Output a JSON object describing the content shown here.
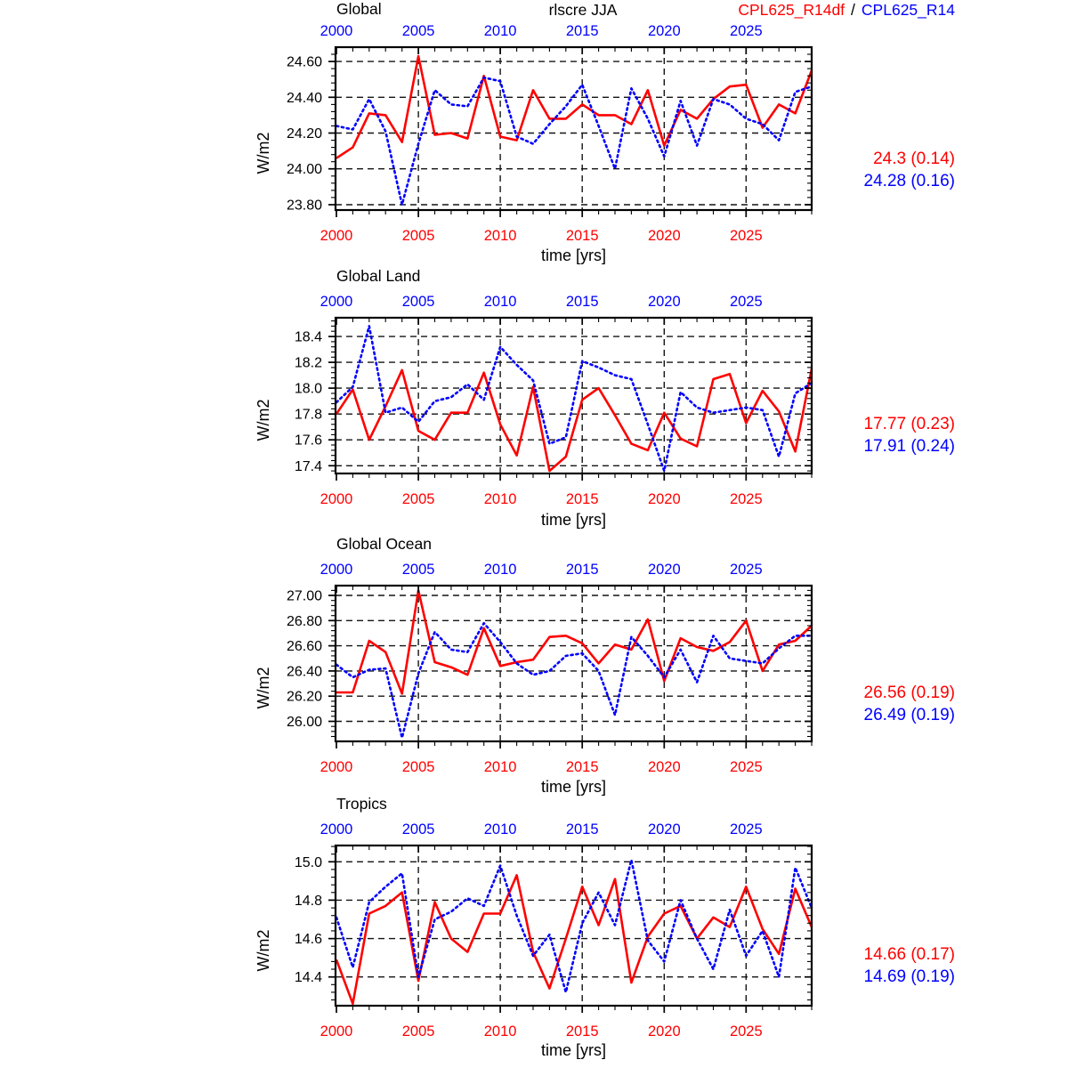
{
  "header": {
    "center_label": "rlscre JJA",
    "legend": {
      "series1_label": "CPL625_R14df",
      "separator": "/",
      "series2_label": "CPL625_R14"
    }
  },
  "colors": {
    "series1": "#ff0000",
    "series2": "#0000ff",
    "axis_top_labels": "#0000ff",
    "axis_bottom_labels": "#ff0000",
    "grid": "#141414",
    "text": "#000000"
  },
  "chart_data": [
    {
      "type": "line",
      "title": "Global",
      "ylabel": "W/m2",
      "xlabel": "time [yrs]",
      "x": [
        2000,
        2001,
        2002,
        2003,
        2004,
        2005,
        2006,
        2007,
        2008,
        2009,
        2010,
        2011,
        2012,
        2013,
        2014,
        2015,
        2016,
        2017,
        2018,
        2019,
        2020,
        2021,
        2022,
        2023,
        2024,
        2025,
        2026,
        2027,
        2028,
        2029
      ],
      "xticks": [
        2000,
        2005,
        2010,
        2015,
        2020,
        2025
      ],
      "ylim": [
        23.77,
        24.68
      ],
      "yticks": [
        24.6,
        24.4,
        24.2,
        24.0,
        23.8
      ],
      "ytick_labels": [
        "24.60",
        "24.40",
        "24.20",
        "24.00",
        "23.80"
      ],
      "grid": true,
      "series": [
        {
          "name": "CPL625_R14df",
          "color": "#ff0000",
          "line_style": "solid",
          "values": [
            24.06,
            24.12,
            24.31,
            24.3,
            24.15,
            24.63,
            24.19,
            24.2,
            24.17,
            24.52,
            24.18,
            24.16,
            24.44,
            24.28,
            24.28,
            24.36,
            24.3,
            24.3,
            24.25,
            24.44,
            24.13,
            24.33,
            24.28,
            24.39,
            24.46,
            24.47,
            24.23,
            24.36,
            24.31,
            24.55
          ]
        },
        {
          "name": "CPL625_R14",
          "color": "#0000ff",
          "line_style": "dotted",
          "values": [
            24.24,
            24.22,
            24.39,
            24.21,
            23.8,
            24.14,
            24.44,
            24.36,
            24.35,
            24.51,
            24.49,
            24.18,
            24.14,
            24.25,
            24.35,
            24.47,
            24.24,
            24.0,
            24.45,
            24.28,
            24.07,
            24.38,
            24.13,
            24.39,
            24.36,
            24.28,
            24.25,
            24.16,
            24.43,
            24.46
          ]
        }
      ],
      "stats": [
        {
          "text": "24.3 (0.14)",
          "color": "#ff0000"
        },
        {
          "text": "24.28 (0.16)",
          "color": "#0000ff"
        }
      ]
    },
    {
      "type": "line",
      "title": "Global Land",
      "ylabel": "W/m2",
      "xlabel": "time [yrs]",
      "x": [
        2000,
        2001,
        2002,
        2003,
        2004,
        2005,
        2006,
        2007,
        2008,
        2009,
        2010,
        2011,
        2012,
        2013,
        2014,
        2015,
        2016,
        2017,
        2018,
        2019,
        2020,
        2021,
        2022,
        2023,
        2024,
        2025,
        2026,
        2027,
        2028,
        2029
      ],
      "xticks": [
        2000,
        2005,
        2010,
        2015,
        2020,
        2025
      ],
      "ylim": [
        17.34,
        18.545
      ],
      "yticks": [
        18.4,
        18.2,
        18.0,
        17.8,
        17.6,
        17.4
      ],
      "ytick_labels": [
        "18.4",
        "18.2",
        "18.0",
        "17.8",
        "17.6",
        "17.4"
      ],
      "grid": true,
      "series": [
        {
          "name": "CPL625_R14df",
          "color": "#ff0000",
          "line_style": "solid",
          "values": [
            17.8,
            17.99,
            17.6,
            17.86,
            18.14,
            17.67,
            17.6,
            17.81,
            17.81,
            18.12,
            17.72,
            17.48,
            18.01,
            17.36,
            17.47,
            17.91,
            18.0,
            17.79,
            17.57,
            17.52,
            17.81,
            17.61,
            17.55,
            18.07,
            18.11,
            17.73,
            17.98,
            17.82,
            17.51,
            18.15
          ]
        },
        {
          "name": "CPL625_R14",
          "color": "#0000ff",
          "line_style": "dotted",
          "values": [
            17.89,
            18.01,
            18.48,
            17.81,
            17.85,
            17.74,
            17.9,
            17.93,
            18.03,
            17.91,
            18.32,
            18.18,
            18.06,
            17.57,
            17.62,
            18.21,
            18.16,
            18.1,
            18.07,
            17.72,
            17.36,
            17.97,
            17.85,
            17.81,
            17.83,
            17.85,
            17.83,
            17.47,
            17.96,
            18.04
          ]
        }
      ],
      "stats": [
        {
          "text": "17.77 (0.23)",
          "color": "#ff0000"
        },
        {
          "text": "17.91 (0.24)",
          "color": "#0000ff"
        }
      ]
    },
    {
      "type": "line",
      "title": "Global Ocean",
      "ylabel": "W/m2",
      "xlabel": "time [yrs]",
      "x": [
        2000,
        2001,
        2002,
        2003,
        2004,
        2005,
        2006,
        2007,
        2008,
        2009,
        2010,
        2011,
        2012,
        2013,
        2014,
        2015,
        2016,
        2017,
        2018,
        2019,
        2020,
        2021,
        2022,
        2023,
        2024,
        2025,
        2026,
        2027,
        2028,
        2029
      ],
      "xticks": [
        2000,
        2005,
        2010,
        2015,
        2020,
        2025
      ],
      "ylim": [
        25.841,
        27.078
      ],
      "yticks": [
        27.0,
        26.8,
        26.6,
        26.4,
        26.2,
        26.0
      ],
      "ytick_labels": [
        "27.00",
        "26.80",
        "26.60",
        "26.40",
        "26.20",
        "26.00"
      ],
      "grid": true,
      "series": [
        {
          "name": "CPL625_R14df",
          "color": "#ff0000",
          "line_style": "solid",
          "values": [
            26.23,
            26.23,
            26.64,
            26.55,
            26.22,
            27.04,
            26.47,
            26.43,
            26.37,
            26.74,
            26.44,
            26.47,
            26.49,
            26.67,
            26.68,
            26.62,
            26.46,
            26.61,
            26.57,
            26.81,
            26.32,
            26.66,
            26.59,
            26.56,
            26.63,
            26.8,
            26.4,
            26.61,
            26.64,
            26.76
          ]
        },
        {
          "name": "CPL625_R14",
          "color": "#0000ff",
          "line_style": "dotted",
          "values": [
            26.45,
            26.35,
            26.41,
            26.42,
            25.87,
            26.38,
            26.71,
            26.57,
            26.55,
            26.78,
            26.63,
            26.46,
            26.37,
            26.4,
            26.52,
            26.54,
            26.4,
            26.05,
            26.67,
            26.52,
            26.35,
            26.57,
            26.31,
            26.68,
            26.5,
            26.48,
            26.46,
            26.58,
            26.68,
            26.68
          ]
        }
      ],
      "stats": [
        {
          "text": "26.56 (0.19)",
          "color": "#ff0000"
        },
        {
          "text": "26.49 (0.19)",
          "color": "#0000ff"
        }
      ]
    },
    {
      "type": "line",
      "title": "Tropics",
      "ylabel": "W/m2",
      "xlabel": "time [yrs]",
      "x": [
        2000,
        2001,
        2002,
        2003,
        2004,
        2005,
        2006,
        2007,
        2008,
        2009,
        2010,
        2011,
        2012,
        2013,
        2014,
        2015,
        2016,
        2017,
        2018,
        2019,
        2020,
        2021,
        2022,
        2023,
        2024,
        2025,
        2026,
        2027,
        2028,
        2029
      ],
      "xticks": [
        2000,
        2005,
        2010,
        2015,
        2020,
        2025
      ],
      "ylim": [
        14.25,
        15.085
      ],
      "yticks": [
        15.0,
        14.8,
        14.6,
        14.4
      ],
      "ytick_labels": [
        "15.0",
        "14.8",
        "14.6",
        "14.4"
      ],
      "grid": true,
      "series": [
        {
          "name": "CPL625_R14df",
          "color": "#ff0000",
          "line_style": "solid",
          "values": [
            14.49,
            14.26,
            14.73,
            14.77,
            14.84,
            14.38,
            14.79,
            14.6,
            14.53,
            14.73,
            14.73,
            14.93,
            14.53,
            14.34,
            14.6,
            14.87,
            14.67,
            14.91,
            14.37,
            14.61,
            14.73,
            14.77,
            14.6,
            14.71,
            14.66,
            14.87,
            14.65,
            14.52,
            14.86,
            14.66
          ]
        },
        {
          "name": "CPL625_R14",
          "color": "#0000ff",
          "line_style": "dotted",
          "values": [
            14.71,
            14.45,
            14.79,
            14.87,
            14.94,
            14.4,
            14.7,
            14.74,
            14.81,
            14.77,
            14.98,
            14.72,
            14.51,
            14.62,
            14.32,
            14.68,
            14.84,
            14.67,
            15.01,
            14.59,
            14.48,
            14.8,
            14.6,
            14.44,
            14.75,
            14.51,
            14.64,
            14.4,
            14.97,
            14.76
          ]
        }
      ],
      "stats": [
        {
          "text": "14.66 (0.17)",
          "color": "#ff0000"
        },
        {
          "text": "14.69 (0.19)",
          "color": "#0000ff"
        }
      ]
    }
  ]
}
